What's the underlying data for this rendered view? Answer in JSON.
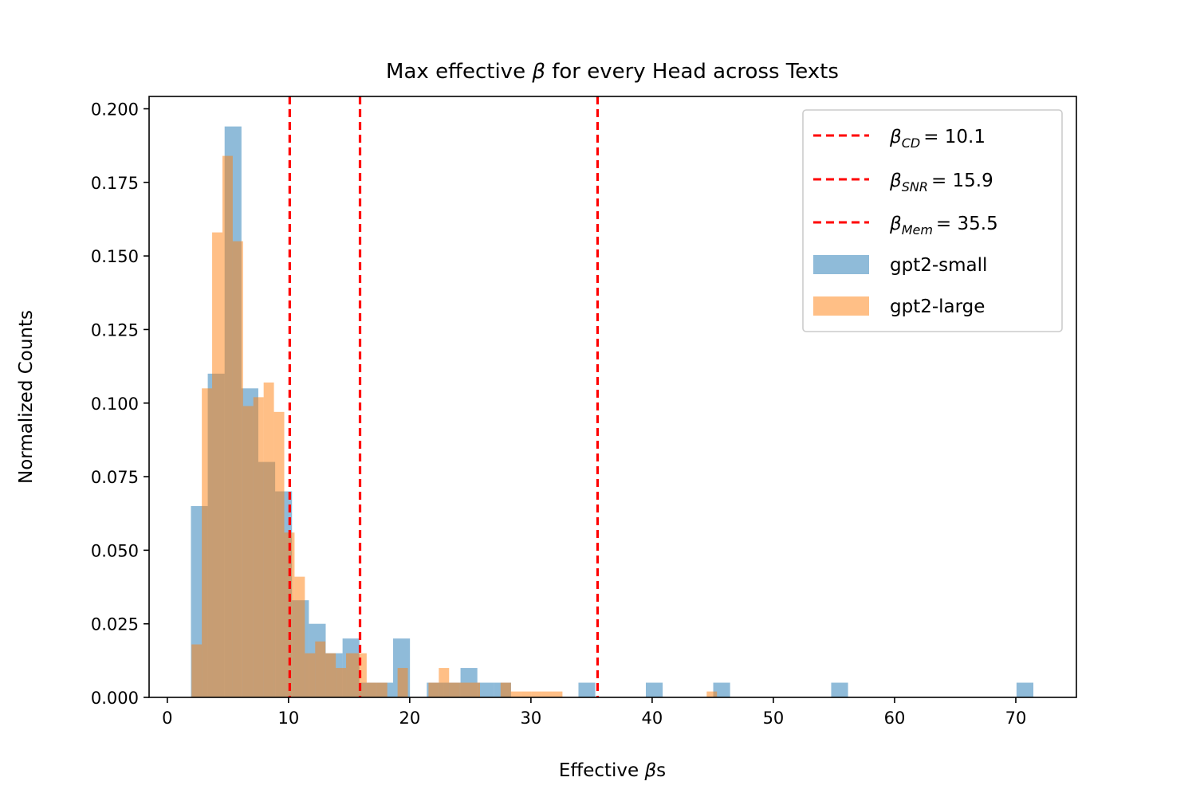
{
  "chart_data": {
    "type": "bar",
    "title": {
      "prefix": "Max effective ",
      "symbol": "β",
      "suffix": " for every Head across Texts"
    },
    "xlabel": {
      "prefix": "Effective ",
      "symbol": "β",
      "suffix": "s"
    },
    "ylabel": "Normalized Counts",
    "xlim": [
      -1.5,
      75
    ],
    "ylim": [
      0,
      0.2042
    ],
    "xticks": [
      0,
      10,
      20,
      30,
      40,
      50,
      60,
      70
    ],
    "yticks": [
      0.0,
      0.025,
      0.05,
      0.075,
      0.1,
      0.125,
      0.15,
      0.175,
      0.2
    ],
    "ytick_labels": [
      "0.000",
      "0.025",
      "0.050",
      "0.075",
      "0.100",
      "0.125",
      "0.150",
      "0.175",
      "0.200"
    ],
    "legend_position": "top-right",
    "grid": false,
    "vlines": [
      {
        "symbol": "β",
        "subscript": "CD",
        "equals": "= 10.1",
        "x": 10.1,
        "color": "#ff0000"
      },
      {
        "symbol": "β",
        "subscript": "SNR",
        "equals": "= 15.9",
        "x": 15.9,
        "color": "#ff0000"
      },
      {
        "symbol": "β",
        "subscript": "Mem",
        "equals": "= 35.5",
        "x": 35.5,
        "color": "#ff0000"
      }
    ],
    "series": [
      {
        "name": "gpt2-small",
        "color": "#1f77b4",
        "opacity": 0.5,
        "bin_width": 1.39,
        "bins": [
          [
            1.95,
            0.065
          ],
          [
            3.34,
            0.11
          ],
          [
            4.73,
            0.194
          ],
          [
            6.12,
            0.105
          ],
          [
            7.51,
            0.08
          ],
          [
            8.9,
            0.07
          ],
          [
            10.29,
            0.033
          ],
          [
            11.68,
            0.025
          ],
          [
            13.07,
            0.015
          ],
          [
            14.46,
            0.02
          ],
          [
            15.85,
            0.005
          ],
          [
            17.24,
            0.005
          ],
          [
            18.63,
            0.02
          ],
          [
            20.02,
            0.0
          ],
          [
            21.41,
            0.005
          ],
          [
            22.8,
            0.005
          ],
          [
            24.19,
            0.01
          ],
          [
            25.58,
            0.005
          ],
          [
            26.97,
            0.005
          ],
          [
            33.92,
            0.005
          ],
          [
            39.48,
            0.005
          ],
          [
            45.04,
            0.005
          ],
          [
            54.77,
            0.005
          ],
          [
            70.06,
            0.005
          ]
        ]
      },
      {
        "name": "gpt2-large",
        "color": "#ff7f0e",
        "opacity": 0.5,
        "bin_width": 0.85,
        "bins": [
          [
            2.0,
            0.018
          ],
          [
            2.85,
            0.105
          ],
          [
            3.7,
            0.158
          ],
          [
            4.55,
            0.184
          ],
          [
            5.4,
            0.155
          ],
          [
            6.25,
            0.099
          ],
          [
            7.1,
            0.102
          ],
          [
            7.95,
            0.107
          ],
          [
            8.8,
            0.097
          ],
          [
            9.65,
            0.056
          ],
          [
            10.5,
            0.041
          ],
          [
            11.35,
            0.015
          ],
          [
            12.2,
            0.019
          ],
          [
            13.05,
            0.015
          ],
          [
            13.9,
            0.01
          ],
          [
            14.75,
            0.015
          ],
          [
            15.6,
            0.015
          ],
          [
            16.45,
            0.005
          ],
          [
            17.3,
            0.005
          ],
          [
            18.15,
            0.0
          ],
          [
            19.0,
            0.01
          ],
          [
            19.85,
            0.0
          ],
          [
            20.7,
            0.0
          ],
          [
            21.55,
            0.005
          ],
          [
            22.4,
            0.01
          ],
          [
            23.25,
            0.005
          ],
          [
            24.1,
            0.005
          ],
          [
            24.95,
            0.005
          ],
          [
            25.8,
            0.0
          ],
          [
            26.65,
            0.0
          ],
          [
            27.5,
            0.005
          ],
          [
            28.35,
            0.002
          ],
          [
            29.2,
            0.002
          ],
          [
            30.05,
            0.002
          ],
          [
            30.9,
            0.002
          ],
          [
            31.75,
            0.002
          ],
          [
            44.5,
            0.002
          ]
        ]
      }
    ]
  }
}
